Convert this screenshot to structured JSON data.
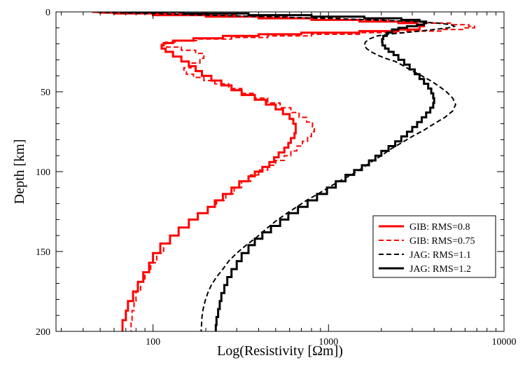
{
  "chart_data": {
    "type": "line",
    "title": "",
    "xlabel": "Log(Resistivity [Ωm])",
    "ylabel": "Depth [km]",
    "xscale": "log",
    "xlim": [
      28,
      10000
    ],
    "ylim": [
      0,
      200
    ],
    "y_inverted": true,
    "grid": false,
    "legend_position": "bottom-right",
    "x_ticks": [
      100,
      1000,
      10000
    ],
    "x_tick_labels": [
      "100",
      "1000",
      "10000"
    ],
    "y_ticks": [
      0,
      50,
      100,
      150,
      200
    ],
    "y_tick_labels": [
      "0",
      "50",
      "100",
      "150",
      "200"
    ],
    "series": [
      {
        "name": "GIB: RMS=0.8",
        "color": "#ff0000",
        "style": "solid",
        "width": 3,
        "step": true,
        "points": [
          [
            45,
            0
          ],
          [
            50,
            0.5
          ],
          [
            60,
            1
          ],
          [
            100,
            2
          ],
          [
            200,
            3
          ],
          [
            400,
            4
          ],
          [
            800,
            5
          ],
          [
            1500,
            6
          ],
          [
            2500,
            7
          ],
          [
            3200,
            8
          ],
          [
            3500,
            9
          ],
          [
            3300,
            11
          ],
          [
            2500,
            12
          ],
          [
            1500,
            13
          ],
          [
            700,
            14
          ],
          [
            400,
            15
          ],
          [
            250,
            16.5
          ],
          [
            170,
            18
          ],
          [
            130,
            19.5
          ],
          [
            115,
            21
          ],
          [
            112,
            23
          ],
          [
            118,
            25
          ],
          [
            130,
            28
          ],
          [
            145,
            31
          ],
          [
            160,
            34
          ],
          [
            175,
            37
          ],
          [
            190,
            40
          ],
          [
            215,
            43
          ],
          [
            245,
            46
          ],
          [
            280,
            49
          ],
          [
            320,
            52
          ],
          [
            380,
            55
          ],
          [
            440,
            58
          ],
          [
            500,
            61
          ],
          [
            550,
            64
          ],
          [
            600,
            67
          ],
          [
            630,
            70
          ],
          [
            650,
            73
          ],
          [
            650,
            76
          ],
          [
            640,
            79
          ],
          [
            610,
            82
          ],
          [
            590,
            85
          ],
          [
            560,
            88
          ],
          [
            520,
            91
          ],
          [
            490,
            94
          ],
          [
            460,
            97
          ],
          [
            420,
            100
          ],
          [
            380,
            103
          ],
          [
            350,
            106
          ],
          [
            310,
            110
          ],
          [
            280,
            114
          ],
          [
            250,
            118
          ],
          [
            225,
            122
          ],
          [
            205,
            126
          ],
          [
            180,
            130
          ],
          [
            160,
            135
          ],
          [
            140,
            140
          ],
          [
            125,
            145
          ],
          [
            110,
            151
          ],
          [
            100,
            157
          ],
          [
            95,
            163
          ],
          [
            88,
            169
          ],
          [
            82,
            175
          ],
          [
            77,
            181
          ],
          [
            72,
            187
          ],
          [
            70,
            193
          ],
          [
            67,
            199
          ]
        ]
      },
      {
        "name": "GIB: RMS=0.75",
        "color": "#ff0000",
        "style": "dashed",
        "width": 2,
        "step": true,
        "points": [
          [
            52,
            0
          ],
          [
            60,
            0.5
          ],
          [
            80,
            1
          ],
          [
            150,
            2
          ],
          [
            300,
            3
          ],
          [
            600,
            4
          ],
          [
            1200,
            5
          ],
          [
            2200,
            6
          ],
          [
            3500,
            7
          ],
          [
            5000,
            8
          ],
          [
            6300,
            9
          ],
          [
            6800,
            10
          ],
          [
            6000,
            11
          ],
          [
            4500,
            12
          ],
          [
            2800,
            13
          ],
          [
            1500,
            14
          ],
          [
            800,
            15
          ],
          [
            450,
            16
          ],
          [
            280,
            17
          ],
          [
            180,
            18
          ],
          [
            135,
            19
          ],
          [
            118,
            20
          ],
          [
            112,
            21
          ],
          [
            120,
            22
          ],
          [
            145,
            24
          ],
          [
            175,
            26
          ],
          [
            195,
            29
          ],
          [
            185,
            32
          ],
          [
            165,
            35
          ],
          [
            150,
            37
          ],
          [
            155,
            39
          ],
          [
            170,
            41
          ],
          [
            195,
            43
          ],
          [
            225,
            45
          ],
          [
            270,
            48
          ],
          [
            320,
            51
          ],
          [
            380,
            54
          ],
          [
            450,
            57
          ],
          [
            530,
            60
          ],
          [
            610,
            63
          ],
          [
            680,
            66
          ],
          [
            750,
            69
          ],
          [
            810,
            72
          ],
          [
            830,
            75
          ],
          [
            800,
            78
          ],
          [
            760,
            81
          ],
          [
            710,
            84
          ],
          [
            660,
            87
          ],
          [
            610,
            90
          ],
          [
            560,
            93
          ],
          [
            500,
            96
          ],
          [
            450,
            99
          ],
          [
            400,
            102
          ],
          [
            360,
            106
          ],
          [
            320,
            110
          ],
          [
            290,
            114
          ],
          [
            260,
            118
          ],
          [
            230,
            122
          ],
          [
            205,
            126
          ],
          [
            180,
            130
          ],
          [
            160,
            135
          ],
          [
            140,
            140
          ],
          [
            125,
            145
          ],
          [
            115,
            151
          ],
          [
            105,
            157
          ],
          [
            97,
            163
          ],
          [
            90,
            169
          ],
          [
            85,
            175
          ],
          [
            80,
            181
          ],
          [
            78,
            187
          ],
          [
            76,
            193
          ],
          [
            75,
            199
          ]
        ]
      },
      {
        "name": "JAG: RMS=1.1",
        "color": "#000000",
        "style": "dashed",
        "width": 2,
        "step": false,
        "points": [
          [
            48,
            0
          ],
          [
            60,
            0.5
          ],
          [
            100,
            1
          ],
          [
            200,
            2
          ],
          [
            450,
            3
          ],
          [
            900,
            4
          ],
          [
            1800,
            5
          ],
          [
            3000,
            6
          ],
          [
            4200,
            7
          ],
          [
            5000,
            8
          ],
          [
            5200,
            9
          ],
          [
            4800,
            10
          ],
          [
            4000,
            11
          ],
          [
            3300,
            12
          ],
          [
            2700,
            13
          ],
          [
            2200,
            14
          ],
          [
            1900,
            15
          ],
          [
            1700,
            17
          ],
          [
            1620,
            19
          ],
          [
            1600,
            21
          ],
          [
            1650,
            23
          ],
          [
            1750,
            25
          ],
          [
            1900,
            27
          ],
          [
            2100,
            29
          ],
          [
            2400,
            31
          ],
          [
            2700,
            34
          ],
          [
            3000,
            37
          ],
          [
            3400,
            40
          ],
          [
            3800,
            43
          ],
          [
            4200,
            46
          ],
          [
            4700,
            50
          ],
          [
            5100,
            54
          ],
          [
            5300,
            58
          ],
          [
            5100,
            62
          ],
          [
            4600,
            66
          ],
          [
            4000,
            70
          ],
          [
            3500,
            74
          ],
          [
            3000,
            78
          ],
          [
            2600,
            82
          ],
          [
            2250,
            86
          ],
          [
            2000,
            90
          ],
          [
            1750,
            94
          ],
          [
            1550,
            98
          ],
          [
            1350,
            102
          ],
          [
            1150,
            106
          ],
          [
            1000,
            110
          ],
          [
            870,
            114
          ],
          [
            750,
            118
          ],
          [
            660,
            122
          ],
          [
            580,
            126
          ],
          [
            500,
            131
          ],
          [
            440,
            136
          ],
          [
            390,
            141
          ],
          [
            340,
            146
          ],
          [
            300,
            151
          ],
          [
            270,
            156
          ],
          [
            250,
            161
          ],
          [
            230,
            166
          ],
          [
            215,
            171
          ],
          [
            205,
            176
          ],
          [
            198,
            181
          ],
          [
            193,
            186
          ],
          [
            190,
            191
          ],
          [
            189,
            196
          ],
          [
            188,
            200
          ]
        ]
      },
      {
        "name": "JAG: RMS=1.2",
        "color": "#000000",
        "style": "solid",
        "width": 3,
        "step": true,
        "points": [
          [
            70,
            0
          ],
          [
            150,
            1
          ],
          [
            350,
            2
          ],
          [
            800,
            3
          ],
          [
            1600,
            4
          ],
          [
            2600,
            5
          ],
          [
            3300,
            6
          ],
          [
            3600,
            7
          ],
          [
            3500,
            8
          ],
          [
            3200,
            9
          ],
          [
            2800,
            10
          ],
          [
            2500,
            11
          ],
          [
            2300,
            13
          ],
          [
            2150,
            15
          ],
          [
            2050,
            17
          ],
          [
            2020,
            19
          ],
          [
            2030,
            21
          ],
          [
            2100,
            23
          ],
          [
            2200,
            25
          ],
          [
            2350,
            27
          ],
          [
            2500,
            30
          ],
          [
            2700,
            33
          ],
          [
            2900,
            36
          ],
          [
            3100,
            39
          ],
          [
            3300,
            42
          ],
          [
            3500,
            45
          ],
          [
            3700,
            48
          ],
          [
            3850,
            51
          ],
          [
            3950,
            54
          ],
          [
            4000,
            57
          ],
          [
            3950,
            60
          ],
          [
            3800,
            63
          ],
          [
            3600,
            66
          ],
          [
            3400,
            69
          ],
          [
            3200,
            72
          ],
          [
            3000,
            75
          ],
          [
            2800,
            78
          ],
          [
            2600,
            81
          ],
          [
            2400,
            84
          ],
          [
            2200,
            87
          ],
          [
            2000,
            90
          ],
          [
            1850,
            93
          ],
          [
            1700,
            96
          ],
          [
            1550,
            99
          ],
          [
            1400,
            102
          ],
          [
            1250,
            106
          ],
          [
            1100,
            110
          ],
          [
            980,
            114
          ],
          [
            860,
            118
          ],
          [
            760,
            122
          ],
          [
            670,
            126
          ],
          [
            590,
            130
          ],
          [
            530,
            134
          ],
          [
            470,
            138
          ],
          [
            420,
            142
          ],
          [
            380,
            146
          ],
          [
            350,
            151
          ],
          [
            320,
            156
          ],
          [
            300,
            161
          ],
          [
            280,
            166
          ],
          [
            265,
            171
          ],
          [
            255,
            176
          ],
          [
            245,
            181
          ],
          [
            240,
            186
          ],
          [
            235,
            191
          ],
          [
            230,
            196
          ],
          [
            228,
            200
          ]
        ]
      }
    ]
  }
}
